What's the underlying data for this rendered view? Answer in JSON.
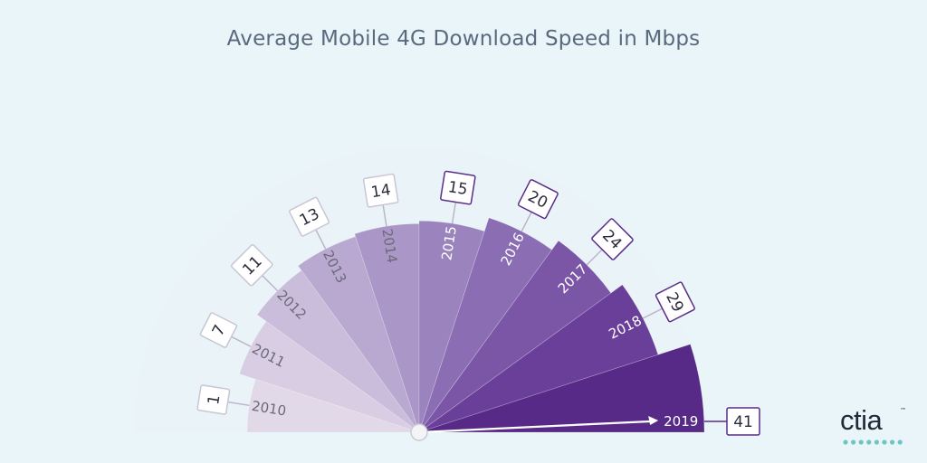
{
  "chart_data": {
    "type": "pie",
    "layout": "semicircle",
    "title": "Average Mobile 4G Download Speed in Mbps",
    "categories": [
      "2010",
      "2011",
      "2012",
      "2013",
      "2014",
      "2015",
      "2016",
      "2017",
      "2018",
      "2019"
    ],
    "values": [
      1,
      7,
      11,
      13,
      14,
      15,
      20,
      24,
      29,
      41
    ],
    "colors": [
      "#e1d8e8",
      "#d8cde3",
      "#cabcdb",
      "#b9a8d0",
      "#ab97c7",
      "#9b84bd",
      "#8a6db3",
      "#7b56a7",
      "#6a3f99",
      "#572a88"
    ],
    "needle_label": "2019",
    "background": "#e9f5f8",
    "label_border": "#5a2d88"
  },
  "logo": {
    "text": "ctia",
    "tm": "™",
    "dot_color": "#6dc5c5"
  }
}
